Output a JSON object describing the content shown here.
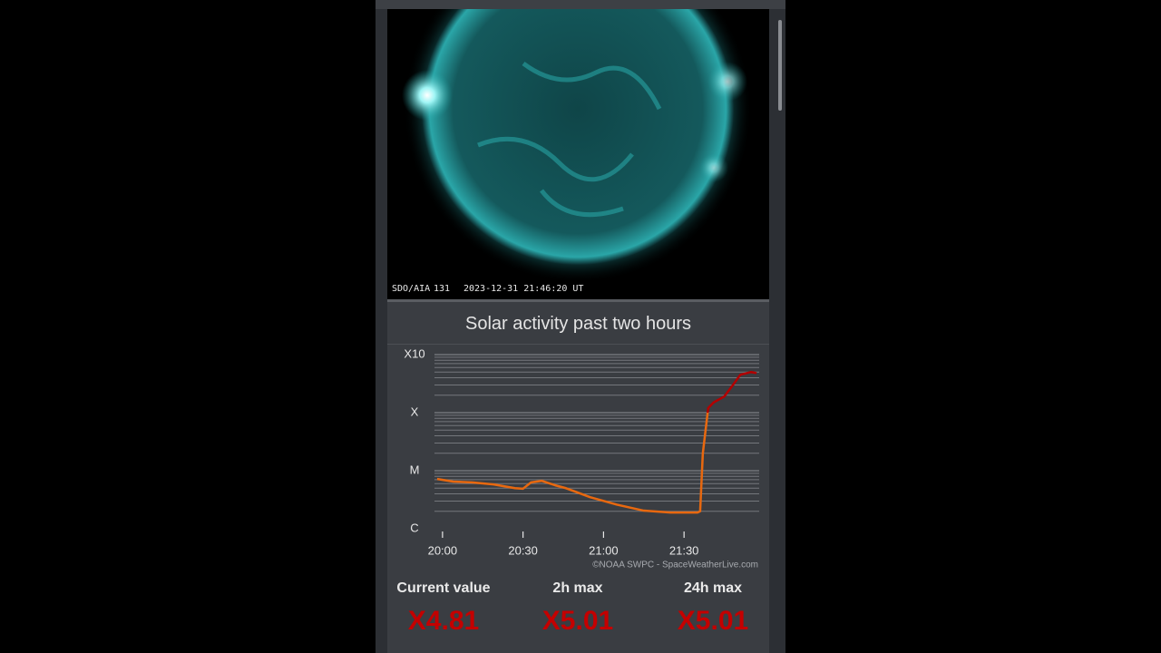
{
  "image": {
    "caption": [
      "SDO/AIA",
      "131",
      "2023-12-31 21:46:20 UT"
    ]
  },
  "chart_data": {
    "type": "line",
    "title": "Solar activity past two hours",
    "x": [
      "19:58",
      "20:04",
      "20:11",
      "20:19",
      "20:27",
      "20:30",
      "20:33",
      "20:37",
      "20:42",
      "20:46",
      "20:55",
      "21:05",
      "21:15",
      "21:25",
      "21:35",
      "21:36",
      "21:37",
      "21:39",
      "21:41",
      "21:45",
      "21:48",
      "21:51",
      "21:55",
      "21:57"
    ],
    "values": [
      7.2e-06,
      6.5e-06,
      6.3e-06,
      5.8e-06,
      5e-06,
      4.9e-06,
      6.3e-06,
      6.7e-06,
      5.6e-06,
      5e-06,
      3.5e-06,
      2.6e-06,
      2.05e-06,
      1.9e-06,
      1.9e-06,
      2e-06,
      2e-05,
      0.00012,
      0.00015,
      0.00019,
      0.00029,
      0.00045,
      0.000501,
      0.000481
    ],
    "color": "#e8680f",
    "color_high": "#b30000",
    "xlim": [
      "19:57",
      "21:58"
    ],
    "xticks": [
      "20:00",
      "20:30",
      "21:00",
      "21:30"
    ],
    "ylim": [
      1e-06,
      0.001
    ],
    "log_scale": true,
    "grid": true,
    "yticks": [
      {
        "value": 1e-06,
        "label": "C"
      },
      {
        "value": 1e-05,
        "label": "M"
      },
      {
        "value": 0.0001,
        "label": "X"
      },
      {
        "value": 0.001,
        "label": "X10"
      }
    ],
    "credit": "©NOAA SWPC - SpaceWeatherLive.com"
  },
  "stats": [
    {
      "label": "Current value",
      "value": "X4.81"
    },
    {
      "label": "2h max",
      "value": "X5.01"
    },
    {
      "label": "24h max",
      "value": "X5.01"
    }
  ]
}
